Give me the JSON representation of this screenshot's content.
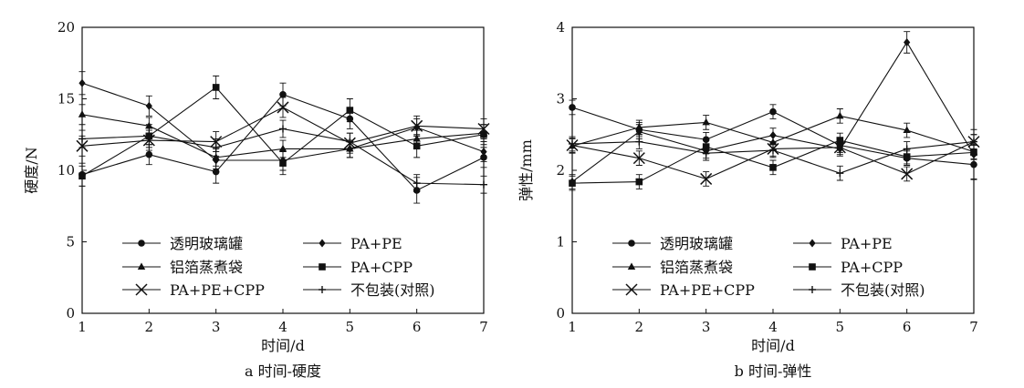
{
  "chart_data": [
    {
      "type": "line",
      "title": "",
      "caption": "a 时间-硬度",
      "xlabel": "时间/d",
      "ylabel": "硬度/N",
      "xlim": [
        1,
        7
      ],
      "ylim": [
        0,
        20
      ],
      "xticks": [
        "1",
        "2",
        "3",
        "4",
        "5",
        "6",
        "7"
      ],
      "yticks": [
        "0",
        "5",
        "10",
        "15",
        "20"
      ],
      "x": [
        1,
        2,
        3,
        4,
        5,
        6,
        7
      ],
      "error_bars": true,
      "legend_position": "bottom-center",
      "series": [
        {
          "name": "透明玻璃罐",
          "marker": "circle",
          "values": [
            9.7,
            11.1,
            9.9,
            15.3,
            13.6,
            8.6,
            10.9
          ],
          "error": [
            0.8,
            0.7,
            0.8,
            0.8,
            0.7,
            0.9,
            0.7
          ]
        },
        {
          "name": "PA+PE",
          "marker": "diamond",
          "values": [
            16.1,
            14.5,
            10.7,
            10.7,
            11.5,
            13.0,
            11.3
          ],
          "error": [
            0.8,
            0.7,
            0.6,
            0.7,
            0.6,
            0.6,
            0.7
          ]
        },
        {
          "name": "铝箔蒸煮袋",
          "marker": "triangle",
          "values": [
            13.9,
            13.1,
            10.9,
            11.5,
            11.5,
            12.2,
            12.6
          ],
          "error": [
            0.7,
            0.6,
            0.6,
            0.6,
            0.6,
            0.6,
            0.6
          ]
        },
        {
          "name": "PA+CPP",
          "marker": "square",
          "values": [
            9.6,
            12.4,
            15.8,
            10.5,
            14.2,
            11.7,
            12.5
          ],
          "error": [
            0.7,
            0.8,
            0.8,
            0.8,
            0.8,
            0.8,
            0.7
          ]
        },
        {
          "name": "PA+PE+CPP",
          "marker": "x",
          "values": [
            11.7,
            12.1,
            12.0,
            14.4,
            11.9,
            13.1,
            12.9
          ],
          "error": [
            0.7,
            0.7,
            0.7,
            0.7,
            0.7,
            0.7,
            0.7
          ]
        },
        {
          "name": "不包装(对照)",
          "marker": "plus",
          "values": [
            12.2,
            12.4,
            11.6,
            12.9,
            12.0,
            9.1,
            9.0
          ],
          "error": [
            0.6,
            0.6,
            0.6,
            0.6,
            0.6,
            0.6,
            0.6
          ]
        }
      ]
    },
    {
      "type": "line",
      "title": "",
      "caption": "b 时间-弹性",
      "xlabel": "时间/d",
      "ylabel": "弹性/mm",
      "xlim": [
        1,
        7
      ],
      "ylim": [
        0,
        4
      ],
      "xticks": [
        "1",
        "2",
        "3",
        "4",
        "5",
        "6",
        "7"
      ],
      "yticks": [
        "0",
        "1",
        "2",
        "3",
        "4"
      ],
      "x": [
        1,
        2,
        3,
        4,
        5,
        6,
        7
      ],
      "error_bars": true,
      "legend_position": "bottom-center",
      "series": [
        {
          "name": "透明玻璃罐",
          "marker": "circle",
          "values": [
            2.88,
            2.57,
            2.43,
            2.82,
            2.35,
            2.17,
            2.08
          ],
          "error": [
            0.1,
            0.1,
            0.1,
            0.1,
            0.1,
            0.1,
            0.2
          ]
        },
        {
          "name": "PA+PE",
          "marker": "diamond",
          "values": [
            1.84,
            2.54,
            2.27,
            2.49,
            2.3,
            3.79,
            2.22
          ],
          "error": [
            0.1,
            0.1,
            0.1,
            0.1,
            0.1,
            0.15,
            0.35
          ]
        },
        {
          "name": "铝箔蒸煮袋",
          "marker": "triangle",
          "values": [
            2.34,
            2.6,
            2.67,
            2.39,
            2.76,
            2.56,
            2.26
          ],
          "error": [
            0.1,
            0.1,
            0.1,
            0.1,
            0.1,
            0.1,
            0.1
          ]
        },
        {
          "name": "PA+CPP",
          "marker": "square",
          "values": [
            1.82,
            1.84,
            2.33,
            2.04,
            2.42,
            2.19,
            2.25
          ],
          "error": [
            0.1,
            0.1,
            0.1,
            0.1,
            0.1,
            0.1,
            0.1
          ]
        },
        {
          "name": "PA+PE+CPP",
          "marker": "x",
          "values": [
            2.35,
            2.17,
            1.88,
            2.3,
            2.32,
            1.95,
            2.4
          ],
          "error": [
            0.1,
            0.1,
            0.1,
            0.1,
            0.1,
            0.1,
            0.1
          ]
        },
        {
          "name": "不包装(对照)",
          "marker": "plus",
          "values": [
            2.37,
            2.4,
            2.24,
            2.28,
            1.96,
            2.3,
            2.4
          ],
          "error": [
            0.1,
            0.1,
            0.1,
            0.1,
            0.1,
            0.1,
            0.1
          ]
        }
      ]
    }
  ]
}
